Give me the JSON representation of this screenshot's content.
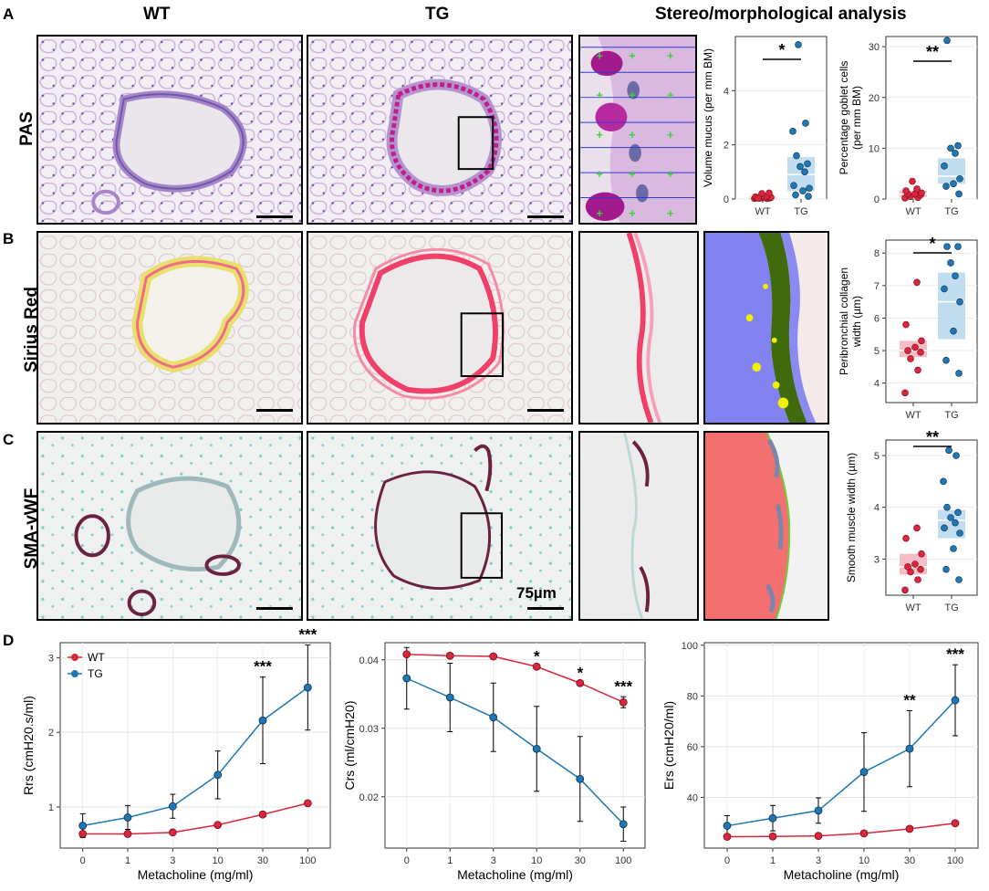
{
  "panels": {
    "A": "A",
    "B": "B",
    "C": "C",
    "D": "D"
  },
  "columns": {
    "wt": "WT",
    "tg": "TG",
    "analysis": "Stereo/morphological analysis"
  },
  "rows": {
    "pas": "PAS",
    "sirius": "Sirius Red",
    "sma": "SMA-vWF"
  },
  "scale_label": "75µm",
  "colors": {
    "wt": "#d7263d",
    "tg": "#1f77b4",
    "wt_box": "#f4b6c2",
    "tg_box": "#bcd9ee",
    "pas_purple": "#b25bb5",
    "sirius_red": "#e8456b",
    "sma_brown": "#6b2140"
  },
  "chart_data": [
    {
      "type": "scatter",
      "id": "volume_mucus",
      "ylabel": "Volume mucus (per mm BM)",
      "categories": [
        "WT",
        "TG"
      ],
      "ylim": [
        0,
        6
      ],
      "yticks": [
        0,
        2,
        4
      ],
      "significance": "*",
      "wt_points": [
        0.02,
        0.02,
        0.03,
        0.04,
        0.05,
        0.05,
        0.06,
        0.08,
        0.1,
        0.2,
        0.22,
        0.03
      ],
      "tg_points": [
        0.1,
        0.15,
        0.3,
        0.4,
        0.5,
        1.0,
        1.2,
        1.3,
        1.6,
        2.5,
        2.8,
        5.7
      ],
      "wt_box": [
        0.0,
        0.06,
        0.1
      ],
      "tg_box": [
        0.3,
        0.9,
        1.55
      ]
    },
    {
      "type": "scatter",
      "id": "goblet",
      "ylabel": "Percentage goblet cells (per mm BM)",
      "categories": [
        "WT",
        "TG"
      ],
      "ylim": [
        0,
        32
      ],
      "yticks": [
        0,
        10,
        20,
        30
      ],
      "significance": "**",
      "wt_points": [
        0.2,
        0.3,
        0.5,
        0.8,
        1.0,
        1.0,
        1.2,
        1.6,
        2.0,
        3.5
      ],
      "tg_points": [
        1.0,
        2.5,
        3.0,
        4.0,
        6.5,
        9.0,
        10.0,
        10.5,
        31.2
      ],
      "wt_box": [
        0.4,
        1.0,
        1.6
      ],
      "tg_box": [
        3.0,
        4.5,
        8.0
      ]
    },
    {
      "type": "scatter",
      "id": "collagen",
      "ylabel": "Peribronchial collagen width (µm)",
      "categories": [
        "WT",
        "TG"
      ],
      "ylim": [
        3.4,
        8.4
      ],
      "yticks": [
        4,
        5,
        6,
        7,
        8
      ],
      "significance": "*",
      "wt_points": [
        3.7,
        4.4,
        4.75,
        4.95,
        5.0,
        5.1,
        5.3,
        5.8,
        7.1
      ],
      "tg_points": [
        4.3,
        4.7,
        5.6,
        6.5,
        6.9,
        7.3,
        7.7,
        8.2,
        8.2
      ],
      "wt_box": [
        4.8,
        5.0,
        5.3
      ],
      "tg_box": [
        5.35,
        6.5,
        7.4
      ]
    },
    {
      "type": "scatter",
      "id": "smooth_muscle",
      "ylabel": "Smooth muscle width (µm)",
      "categories": [
        "WT",
        "TG"
      ],
      "ylim": [
        2.3,
        5.3
      ],
      "yticks": [
        3,
        4,
        5
      ],
      "significance": "**",
      "wt_points": [
        2.4,
        2.6,
        2.75,
        2.8,
        2.85,
        2.9,
        3.1,
        3.4,
        3.6
      ],
      "tg_points": [
        2.6,
        2.8,
        3.2,
        3.5,
        3.6,
        3.7,
        3.8,
        3.9,
        4.0,
        4.5,
        5.0,
        5.1
      ],
      "wt_box": [
        2.7,
        2.85,
        3.1
      ],
      "tg_box": [
        3.4,
        3.75,
        3.95
      ]
    },
    {
      "type": "line",
      "id": "rrs",
      "ylabel": "Rrs (cmH20.s/ml)",
      "xlabel": "Metacholine (mg/ml)",
      "categories": [
        "0",
        "1",
        "3",
        "10",
        "30",
        "100"
      ],
      "ylim": [
        0.45,
        3.2
      ],
      "yticks": [
        1,
        2,
        3
      ],
      "legend": [
        "WT",
        "TG"
      ],
      "series": [
        {
          "name": "WT",
          "values": [
            0.64,
            0.64,
            0.66,
            0.76,
            0.9,
            1.05
          ],
          "err": [
            0,
            0,
            0,
            0,
            0,
            0
          ]
        },
        {
          "name": "TG",
          "values": [
            0.75,
            0.86,
            1.01,
            1.43,
            2.16,
            2.6
          ],
          "err": [
            0.16,
            0.16,
            0.16,
            0.32,
            0.58,
            0.57
          ]
        }
      ],
      "stars": [
        "",
        "",
        "",
        "",
        "***",
        "***"
      ]
    },
    {
      "type": "line",
      "id": "crs",
      "ylabel": "Crs (ml/cmH20)",
      "xlabel": "Metacholine (mg/ml)",
      "categories": [
        "0",
        "1",
        "3",
        "10",
        "30",
        "100"
      ],
      "ylim": [
        0.0125,
        0.0425
      ],
      "yticks": [
        0.02,
        0.03,
        0.04
      ],
      "ytick_labels": [
        "0.02",
        "0.03",
        "0.04"
      ],
      "series": [
        {
          "name": "WT",
          "values": [
            0.0408,
            0.0406,
            0.0405,
            0.039,
            0.0366,
            0.0338
          ],
          "err": [
            0,
            0,
            0,
            0,
            0,
            0.0008
          ]
        },
        {
          "name": "TG",
          "values": [
            0.0373,
            0.0345,
            0.0316,
            0.027,
            0.0226,
            0.016
          ],
          "err": [
            0.0045,
            0.005,
            0.005,
            0.0062,
            0.0062,
            0.0025
          ]
        }
      ],
      "stars": [
        "",
        "",
        "",
        "*",
        "*",
        "***"
      ]
    },
    {
      "type": "line",
      "id": "ers",
      "ylabel": "Ers (cmH20/ml)",
      "xlabel": "Metacholine (mg/ml)",
      "categories": [
        "0",
        "1",
        "3",
        "10",
        "30",
        "100"
      ],
      "ylim": [
        20,
        101
      ],
      "yticks": [
        40,
        60,
        80,
        100
      ],
      "series": [
        {
          "name": "WT",
          "values": [
            24.5,
            24.6,
            24.8,
            25.8,
            27.6,
            29.8
          ],
          "err": [
            0,
            0,
            0,
            0,
            0,
            0
          ]
        },
        {
          "name": "TG",
          "values": [
            28.8,
            31.8,
            34.8,
            50.0,
            59.2,
            78.3
          ],
          "err": [
            4.0,
            5.0,
            5.0,
            15.5,
            15.0,
            14.0
          ]
        }
      ],
      "stars": [
        "",
        "",
        "",
        "",
        "**",
        "***"
      ]
    }
  ]
}
